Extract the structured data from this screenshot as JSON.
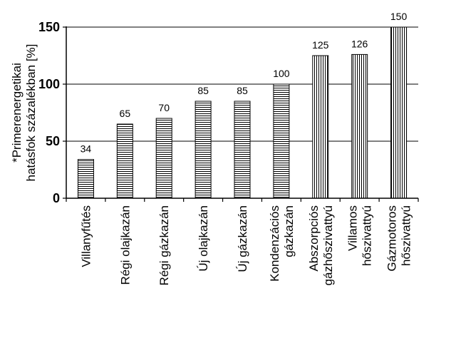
{
  "chart_data": {
    "type": "bar",
    "title": "",
    "ylabel": "*Primerenergetikai hatásfok százalékban [%]",
    "ylabel_lines": [
      "*Primerenergetikai",
      "hatásfok százalékban [%]"
    ],
    "xlabel": "",
    "ylim": [
      0,
      150
    ],
    "yticks": [
      0,
      50,
      100,
      150
    ],
    "grid": true,
    "legend": "none",
    "categories": [
      "Villanyfűtés",
      "Régi olajkazán",
      "Régi gázkazán",
      "Új olajkazán",
      "Új gázkazán",
      "Kondenzációs gázkazán",
      "Abszorpciós gázhőszivattyú",
      "Villamos hőszivattyú",
      "Gázmotoros hőszivattyú"
    ],
    "category_lines": [
      [
        "Villanyfűtés"
      ],
      [
        "Régi olajkazán"
      ],
      [
        "Régi gázkazán"
      ],
      [
        "Új olajkazán"
      ],
      [
        "Új gázkazán"
      ],
      [
        "Kondenzációs",
        "gázkazán"
      ],
      [
        "Abszorpciós",
        "gázhőszivattyú"
      ],
      [
        "Villamos",
        "hőszivattyú"
      ],
      [
        "Gázmotoros",
        "hőszivattyú"
      ]
    ],
    "values": [
      34,
      65,
      70,
      85,
      85,
      100,
      125,
      126,
      150
    ],
    "data_labels": [
      "34",
      "65",
      "70",
      "85",
      "85",
      "100",
      "125",
      "126",
      "150"
    ],
    "hatch": [
      "horizontal",
      "horizontal",
      "horizontal",
      "horizontal",
      "horizontal",
      "horizontal",
      "vertical",
      "vertical",
      "vertical"
    ],
    "colors": {
      "bar_fill": "#ffffff",
      "bar_stroke": "#000000",
      "hatch": "#000000",
      "grid": "#000000"
    }
  }
}
